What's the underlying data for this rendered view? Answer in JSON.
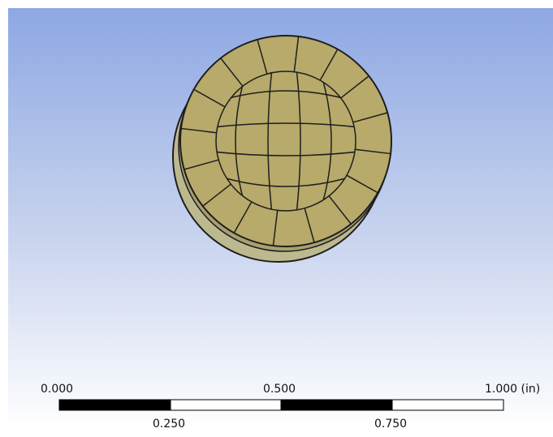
{
  "scale_bar": {
    "labels_top": [
      "0.000",
      "0.500",
      "1.000 (in)"
    ],
    "labels_bottom": [
      "0.250",
      "0.750"
    ]
  }
}
